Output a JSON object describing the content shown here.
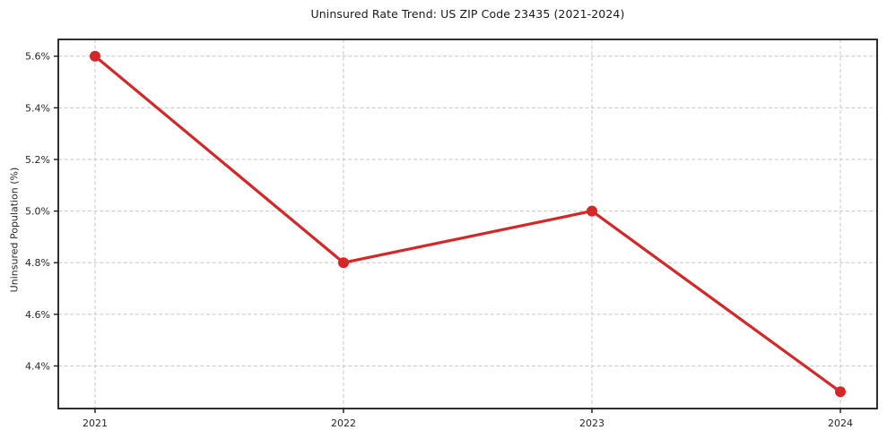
{
  "chart_data": {
    "type": "line",
    "title": "Uninsured Rate Trend: US ZIP Code 23435 (2021-2024)",
    "xlabel": "",
    "ylabel": "Uninsured Population (%)",
    "categories": [
      "2021",
      "2022",
      "2023",
      "2024"
    ],
    "values": [
      5.6,
      4.8,
      5.0,
      4.3
    ],
    "y_ticks": {
      "values": [
        5.6,
        5.4,
        5.2,
        5.0,
        4.8,
        4.6,
        4.4
      ],
      "labels": [
        "5.6%",
        "5.4%",
        "5.2%",
        "5.0%",
        "4.8%",
        "4.6%",
        "4.4%"
      ]
    },
    "ylim": [
      4.235,
      5.665
    ],
    "grid": true,
    "grid_style": "dashed",
    "legend": "none",
    "colors": {
      "line": "#d62728",
      "marker": "#d62728",
      "grid": "#cccccc",
      "spine": "#1a1a1a",
      "tick_label": "#262626",
      "background": "#ffffff"
    }
  }
}
